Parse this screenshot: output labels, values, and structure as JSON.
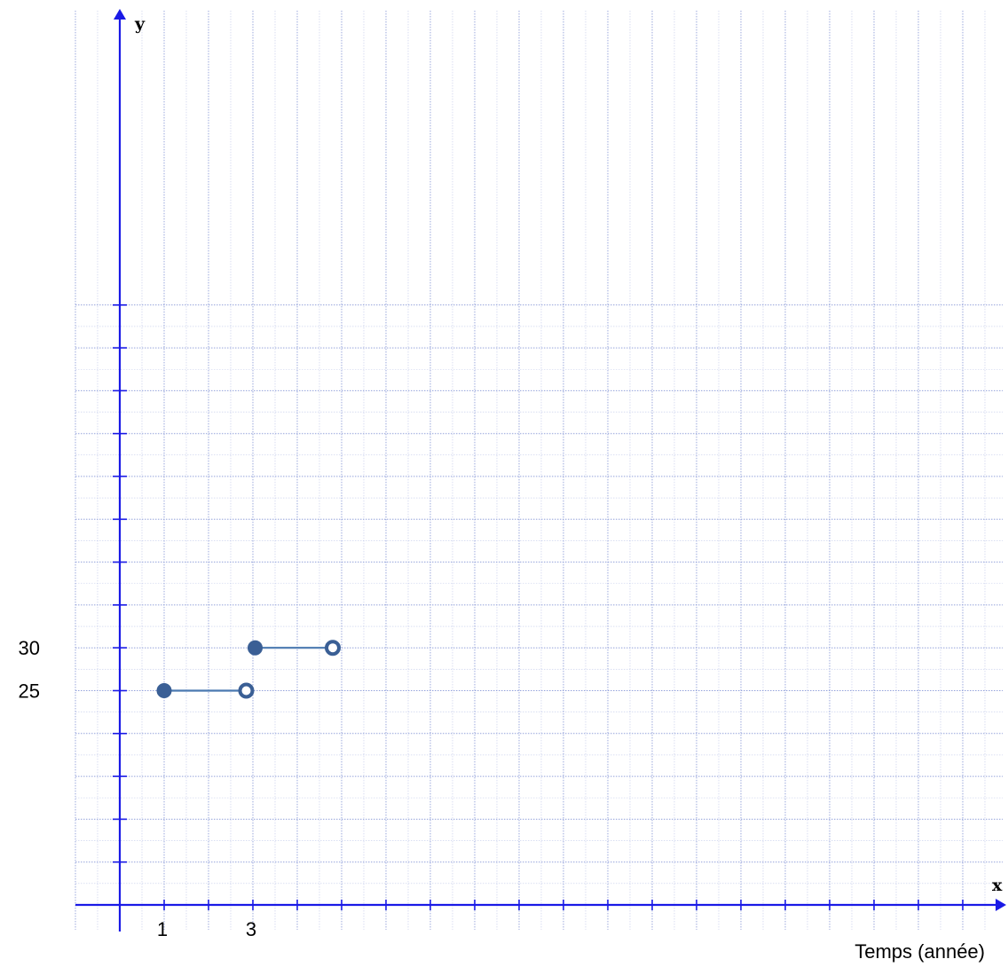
{
  "chart_data": {
    "type": "line",
    "title": "",
    "xlabel": "Temps (année)",
    "ylabel": "",
    "x_axis_letter": "x",
    "y_axis_letter": "y",
    "xlim": [
      0,
      19
    ],
    "ylim": [
      0,
      70
    ],
    "x_tick_labels": [
      {
        "value": 1,
        "label": "1"
      },
      {
        "value": 3,
        "label": "3"
      }
    ],
    "y_tick_labels": [
      {
        "value": 25,
        "label": "25"
      },
      {
        "value": 30,
        "label": "30"
      }
    ],
    "grid": true,
    "series": [
      {
        "segments": [
          {
            "x_start": 1,
            "x_end": 2.85,
            "y": 25,
            "start_closed": true,
            "end_closed": false
          },
          {
            "x_start": 3.05,
            "x_end": 4.8,
            "y": 30,
            "start_closed": true,
            "end_closed": false
          }
        ]
      }
    ],
    "colors": {
      "axis": "#1a1ae6",
      "grid": "#8a9ad8",
      "segment": "#4a79b0",
      "marker": "#3a5f95"
    }
  }
}
